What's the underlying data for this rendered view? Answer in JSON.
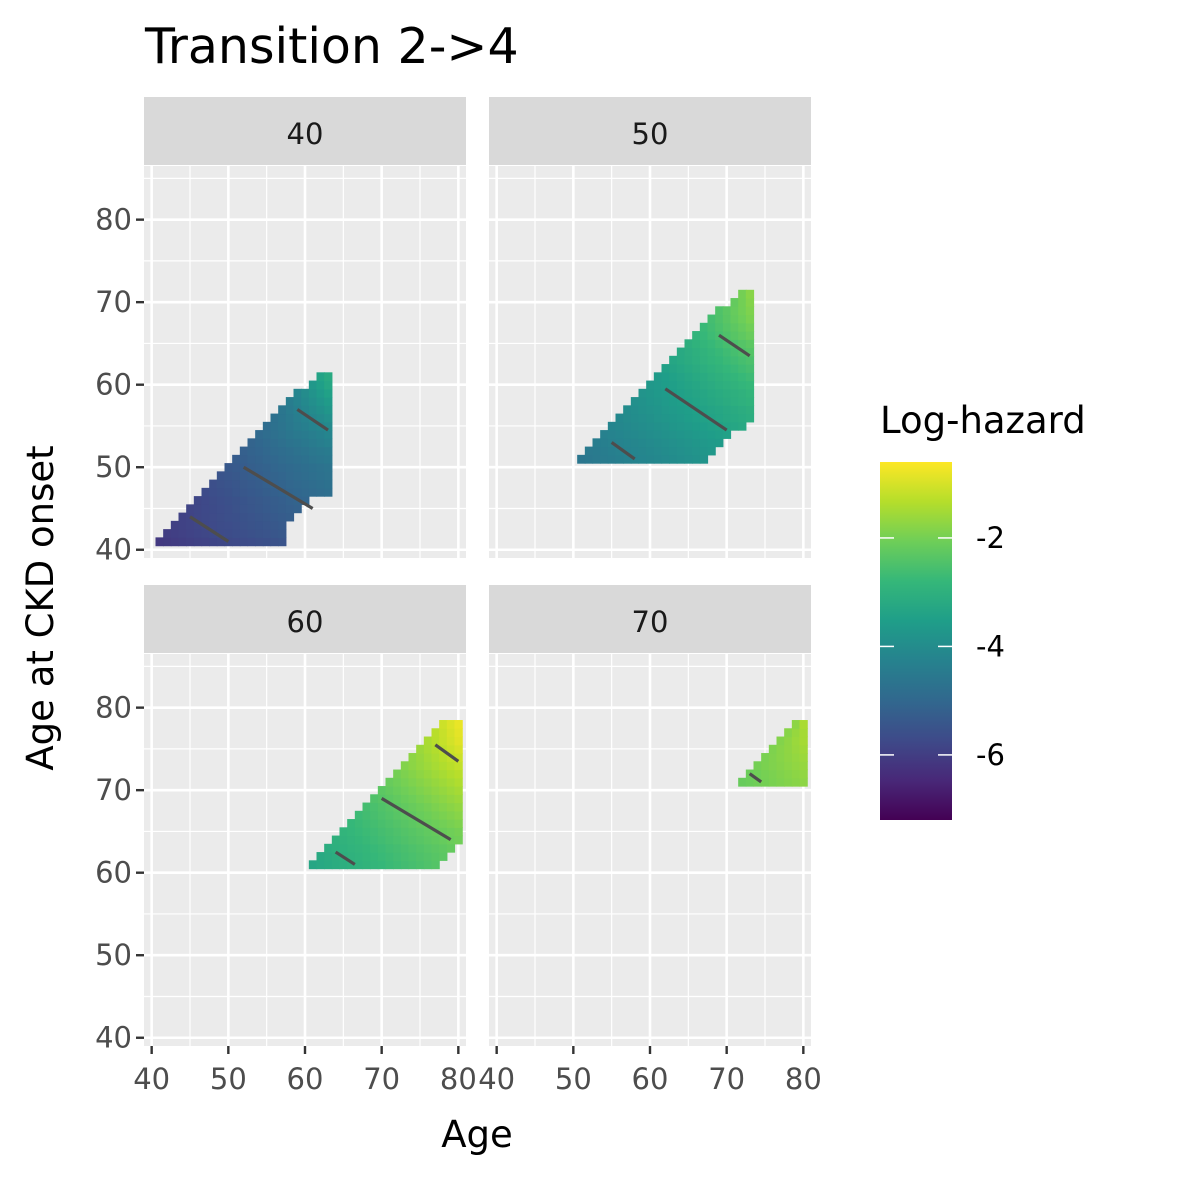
{
  "chart_data": {
    "type": "heatmap",
    "title": "Transition 2->4",
    "xlabel": "Age",
    "ylabel": "Age at CKD onset",
    "xlim": [
      39,
      81
    ],
    "ylim": [
      39,
      86.5
    ],
    "x_ticks": [
      40,
      50,
      60,
      70,
      80
    ],
    "y_ticks": [
      40,
      50,
      60,
      70,
      80
    ],
    "x_tick_labels": [
      "40",
      "50",
      "60",
      "70",
      "80"
    ],
    "y_tick_labels": [
      "40",
      "50",
      "60",
      "70",
      "80"
    ],
    "panel_background": "#ebebeb",
    "strip_background": "#d9d9d9",
    "grid": true,
    "contour_color": "#4d4d4d",
    "panels": [
      {
        "label": "40",
        "cells": [
          {
            "onset": 41,
            "age_from": 41,
            "age_to": 57,
            "log_hazard": [
              -6.1,
              -5.5
            ]
          },
          {
            "onset": 42,
            "age_from": 42,
            "age_to": 57,
            "log_hazard": [
              -6.0,
              -5.4
            ]
          },
          {
            "onset": 43,
            "age_from": 43,
            "age_to": 57,
            "log_hazard": [
              -5.95,
              -5.35
            ]
          },
          {
            "onset": 44,
            "age_from": 44,
            "age_to": 58,
            "log_hazard": [
              -5.9,
              -5.25
            ]
          },
          {
            "onset": 45,
            "age_from": 45,
            "age_to": 59,
            "log_hazard": [
              -5.85,
              -5.15
            ]
          },
          {
            "onset": 46,
            "age_from": 46,
            "age_to": 60,
            "log_hazard": [
              -5.8,
              -5.05
            ]
          },
          {
            "onset": 47,
            "age_from": 47,
            "age_to": 63,
            "log_hazard": [
              -5.7,
              -4.8
            ]
          },
          {
            "onset": 48,
            "age_from": 48,
            "age_to": 63,
            "log_hazard": [
              -5.6,
              -4.75
            ]
          },
          {
            "onset": 49,
            "age_from": 49,
            "age_to": 63,
            "log_hazard": [
              -5.5,
              -4.7
            ]
          },
          {
            "onset": 50,
            "age_from": 50,
            "age_to": 63,
            "log_hazard": [
              -5.4,
              -4.65
            ]
          },
          {
            "onset": 51,
            "age_from": 51,
            "age_to": 63,
            "log_hazard": [
              -5.3,
              -4.55
            ]
          },
          {
            "onset": 52,
            "age_from": 52,
            "age_to": 63,
            "log_hazard": [
              -5.2,
              -4.45
            ]
          },
          {
            "onset": 53,
            "age_from": 53,
            "age_to": 63,
            "log_hazard": [
              -5.1,
              -4.3
            ]
          },
          {
            "onset": 54,
            "age_from": 54,
            "age_to": 63,
            "log_hazard": [
              -4.95,
              -4.2
            ]
          },
          {
            "onset": 55,
            "age_from": 55,
            "age_to": 63,
            "log_hazard": [
              -4.85,
              -4.05
            ]
          },
          {
            "onset": 56,
            "age_from": 56,
            "age_to": 63,
            "log_hazard": [
              -4.75,
              -3.9
            ]
          },
          {
            "onset": 57,
            "age_from": 57,
            "age_to": 63,
            "log_hazard": [
              -4.6,
              -3.75
            ]
          },
          {
            "onset": 58,
            "age_from": 58,
            "age_to": 63,
            "log_hazard": [
              -4.4,
              -3.6
            ]
          },
          {
            "onset": 59,
            "age_from": 59,
            "age_to": 63,
            "log_hazard": [
              -4.2,
              -3.45
            ]
          },
          {
            "onset": 60,
            "age_from": 61,
            "age_to": 63,
            "log_hazard": [
              -3.7,
              -3.3
            ]
          },
          {
            "onset": 61,
            "age_from": 62,
            "age_to": 63,
            "log_hazard": [
              -3.4,
              -3.2
            ]
          }
        ],
        "contours": [
          {
            "from": [
              45,
              44
            ],
            "to": [
              50,
              41
            ]
          },
          {
            "from": [
              52,
              50
            ],
            "to": [
              61,
              45
            ]
          },
          {
            "from": [
              59,
              57
            ],
            "to": [
              63,
              54.5
            ]
          }
        ]
      },
      {
        "label": "50",
        "cells": [
          {
            "onset": 51,
            "age_from": 51,
            "age_to": 67,
            "log_hazard": [
              -4.6,
              -3.8
            ]
          },
          {
            "onset": 52,
            "age_from": 52,
            "age_to": 68,
            "log_hazard": [
              -4.5,
              -3.7
            ]
          },
          {
            "onset": 53,
            "age_from": 53,
            "age_to": 69,
            "log_hazard": [
              -4.4,
              -3.6
            ]
          },
          {
            "onset": 54,
            "age_from": 54,
            "age_to": 70,
            "log_hazard": [
              -4.3,
              -3.45
            ]
          },
          {
            "onset": 55,
            "age_from": 55,
            "age_to": 72,
            "log_hazard": [
              -4.2,
              -3.25
            ]
          },
          {
            "onset": 56,
            "age_from": 56,
            "age_to": 73,
            "log_hazard": [
              -4.1,
              -3.1
            ]
          },
          {
            "onset": 57,
            "age_from": 57,
            "age_to": 73,
            "log_hazard": [
              -4.0,
              -3.05
            ]
          },
          {
            "onset": 58,
            "age_from": 58,
            "age_to": 73,
            "log_hazard": [
              -3.9,
              -2.95
            ]
          },
          {
            "onset": 59,
            "age_from": 59,
            "age_to": 73,
            "log_hazard": [
              -3.8,
              -2.9
            ]
          },
          {
            "onset": 60,
            "age_from": 60,
            "age_to": 73,
            "log_hazard": [
              -3.7,
              -2.8
            ]
          },
          {
            "onset": 61,
            "age_from": 61,
            "age_to": 73,
            "log_hazard": [
              -3.6,
              -2.7
            ]
          },
          {
            "onset": 62,
            "age_from": 62,
            "age_to": 73,
            "log_hazard": [
              -3.45,
              -2.6
            ]
          },
          {
            "onset": 63,
            "age_from": 63,
            "age_to": 73,
            "log_hazard": [
              -3.3,
              -2.5
            ]
          },
          {
            "onset": 64,
            "age_from": 64,
            "age_to": 73,
            "log_hazard": [
              -3.2,
              -2.4
            ]
          },
          {
            "onset": 65,
            "age_from": 65,
            "age_to": 73,
            "log_hazard": [
              -3.05,
              -2.3
            ]
          },
          {
            "onset": 66,
            "age_from": 66,
            "age_to": 73,
            "log_hazard": [
              -2.9,
              -2.15
            ]
          },
          {
            "onset": 67,
            "age_from": 67,
            "age_to": 73,
            "log_hazard": [
              -2.75,
              -2.05
            ]
          },
          {
            "onset": 68,
            "age_from": 68,
            "age_to": 73,
            "log_hazard": [
              -2.6,
              -1.95
            ]
          },
          {
            "onset": 69,
            "age_from": 69,
            "age_to": 73,
            "log_hazard": [
              -2.45,
              -1.9
            ]
          },
          {
            "onset": 70,
            "age_from": 71,
            "age_to": 73,
            "log_hazard": [
              -2.2,
              -1.85
            ]
          },
          {
            "onset": 71,
            "age_from": 72,
            "age_to": 73,
            "log_hazard": [
              -2.0,
              -1.8
            ]
          }
        ],
        "contours": [
          {
            "from": [
              55,
              53
            ],
            "to": [
              58,
              51
            ]
          },
          {
            "from": [
              62,
              59.5
            ],
            "to": [
              70,
              54.5
            ]
          },
          {
            "from": [
              69,
              66
            ],
            "to": [
              73,
              63.5
            ]
          }
        ]
      },
      {
        "label": "60",
        "cells": [
          {
            "onset": 61,
            "age_from": 61,
            "age_to": 77,
            "log_hazard": [
              -3.3,
              -2.4
            ]
          },
          {
            "onset": 62,
            "age_from": 62,
            "age_to": 78,
            "log_hazard": [
              -3.2,
              -2.3
            ]
          },
          {
            "onset": 63,
            "age_from": 63,
            "age_to": 79,
            "log_hazard": [
              -3.1,
              -2.2
            ]
          },
          {
            "onset": 64,
            "age_from": 64,
            "age_to": 80,
            "log_hazard": [
              -3.0,
              -2.05
            ]
          },
          {
            "onset": 65,
            "age_from": 65,
            "age_to": 80,
            "log_hazard": [
              -2.9,
              -2.0
            ]
          },
          {
            "onset": 66,
            "age_from": 66,
            "age_to": 80,
            "log_hazard": [
              -2.8,
              -1.9
            ]
          },
          {
            "onset": 67,
            "age_from": 67,
            "age_to": 80,
            "log_hazard": [
              -2.7,
              -1.8
            ]
          },
          {
            "onset": 68,
            "age_from": 68,
            "age_to": 80,
            "log_hazard": [
              -2.6,
              -1.7
            ]
          },
          {
            "onset": 69,
            "age_from": 69,
            "age_to": 80,
            "log_hazard": [
              -2.45,
              -1.6
            ]
          },
          {
            "onset": 70,
            "age_from": 70,
            "age_to": 80,
            "log_hazard": [
              -2.3,
              -1.5
            ]
          },
          {
            "onset": 71,
            "age_from": 71,
            "age_to": 80,
            "log_hazard": [
              -2.15,
              -1.4
            ]
          },
          {
            "onset": 72,
            "age_from": 72,
            "age_to": 80,
            "log_hazard": [
              -2.0,
              -1.3
            ]
          },
          {
            "onset": 73,
            "age_from": 73,
            "age_to": 80,
            "log_hazard": [
              -1.85,
              -1.2
            ]
          },
          {
            "onset": 74,
            "age_from": 74,
            "age_to": 80,
            "log_hazard": [
              -1.75,
              -1.1
            ]
          },
          {
            "onset": 75,
            "age_from": 75,
            "age_to": 80,
            "log_hazard": [
              -1.6,
              -1.0
            ]
          },
          {
            "onset": 76,
            "age_from": 76,
            "age_to": 80,
            "log_hazard": [
              -1.45,
              -0.9
            ]
          },
          {
            "onset": 77,
            "age_from": 77,
            "age_to": 80,
            "log_hazard": [
              -1.3,
              -0.85
            ]
          },
          {
            "onset": 78,
            "age_from": 78,
            "age_to": 80,
            "log_hazard": [
              -1.1,
              -0.8
            ]
          }
        ],
        "contours": [
          {
            "from": [
              64,
              62.5
            ],
            "to": [
              66.5,
              61
            ]
          },
          {
            "from": [
              70,
              69
            ],
            "to": [
              79,
              64
            ]
          },
          {
            "from": [
              77,
              75.5
            ],
            "to": [
              80,
              73.5
            ]
          }
        ]
      },
      {
        "label": "70",
        "cells": [
          {
            "onset": 71,
            "age_from": 72,
            "age_to": 80,
            "log_hazard": [
              -2.15,
              -1.75
            ]
          },
          {
            "onset": 72,
            "age_from": 73,
            "age_to": 80,
            "log_hazard": [
              -2.1,
              -1.7
            ]
          },
          {
            "onset": 73,
            "age_from": 74,
            "age_to": 80,
            "log_hazard": [
              -2.0,
              -1.65
            ]
          },
          {
            "onset": 74,
            "age_from": 75,
            "age_to": 80,
            "log_hazard": [
              -1.95,
              -1.6
            ]
          },
          {
            "onset": 75,
            "age_from": 76,
            "age_to": 80,
            "log_hazard": [
              -1.9,
              -1.55
            ]
          },
          {
            "onset": 76,
            "age_from": 77,
            "age_to": 80,
            "log_hazard": [
              -1.85,
              -1.5
            ]
          },
          {
            "onset": 77,
            "age_from": 78,
            "age_to": 80,
            "log_hazard": [
              -1.8,
              -1.5
            ]
          },
          {
            "onset": 78,
            "age_from": 79,
            "age_to": 80,
            "log_hazard": [
              -1.75,
              -1.45
            ]
          }
        ],
        "contours": [
          {
            "from": [
              73,
              72
            ],
            "to": [
              74.5,
              71
            ]
          }
        ]
      }
    ],
    "legend": {
      "title": "Log-hazard",
      "placement": "right",
      "range": [
        -7.2,
        -0.6
      ],
      "ticks": [
        -2,
        -4,
        -6
      ],
      "tick_labels": [
        "-2",
        "-4",
        "-6"
      ],
      "colors": [
        "#440154",
        "#482878",
        "#3e4a89",
        "#31688e",
        "#26828e",
        "#1f9e89",
        "#35b779",
        "#6ece58",
        "#b5de2b",
        "#fde725"
      ]
    }
  }
}
